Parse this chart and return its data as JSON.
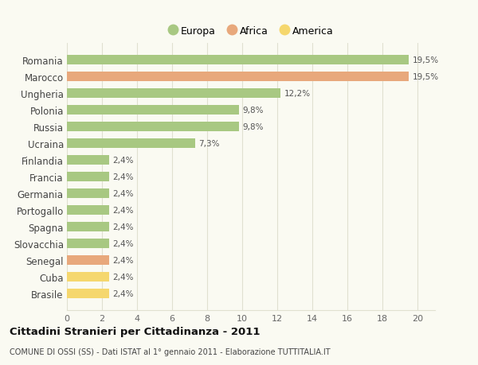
{
  "categories": [
    "Brasile",
    "Cuba",
    "Senegal",
    "Slovacchia",
    "Spagna",
    "Portogallo",
    "Germania",
    "Francia",
    "Finlandia",
    "Ucraina",
    "Russia",
    "Polonia",
    "Ungheria",
    "Marocco",
    "Romania"
  ],
  "values": [
    2.4,
    2.4,
    2.4,
    2.4,
    2.4,
    2.4,
    2.4,
    2.4,
    2.4,
    7.3,
    9.8,
    9.8,
    12.2,
    19.5,
    19.5
  ],
  "colors": [
    "#f5d76e",
    "#f5d76e",
    "#e8a87c",
    "#a8c882",
    "#a8c882",
    "#a8c882",
    "#a8c882",
    "#a8c882",
    "#a8c882",
    "#a8c882",
    "#a8c882",
    "#a8c882",
    "#a8c882",
    "#e8a87c",
    "#a8c882"
  ],
  "labels": [
    "2,4%",
    "2,4%",
    "2,4%",
    "2,4%",
    "2,4%",
    "2,4%",
    "2,4%",
    "2,4%",
    "2,4%",
    "7,3%",
    "9,8%",
    "9,8%",
    "12,2%",
    "19,5%",
    "19,5%"
  ],
  "legend": [
    {
      "label": "Europa",
      "color": "#a8c882"
    },
    {
      "label": "Africa",
      "color": "#e8a87c"
    },
    {
      "label": "America",
      "color": "#f5d76e"
    }
  ],
  "title": "Cittadini Stranieri per Cittadinanza - 2011",
  "subtitle": "COMUNE DI OSSI (SS) - Dati ISTAT al 1° gennaio 2011 - Elaborazione TUTTITALIA.IT",
  "xlim": [
    0,
    21
  ],
  "xticks": [
    0,
    2,
    4,
    6,
    8,
    10,
    12,
    14,
    16,
    18,
    20
  ],
  "background_color": "#fafaf2",
  "grid_color": "#e0e0d0",
  "bar_height": 0.55
}
